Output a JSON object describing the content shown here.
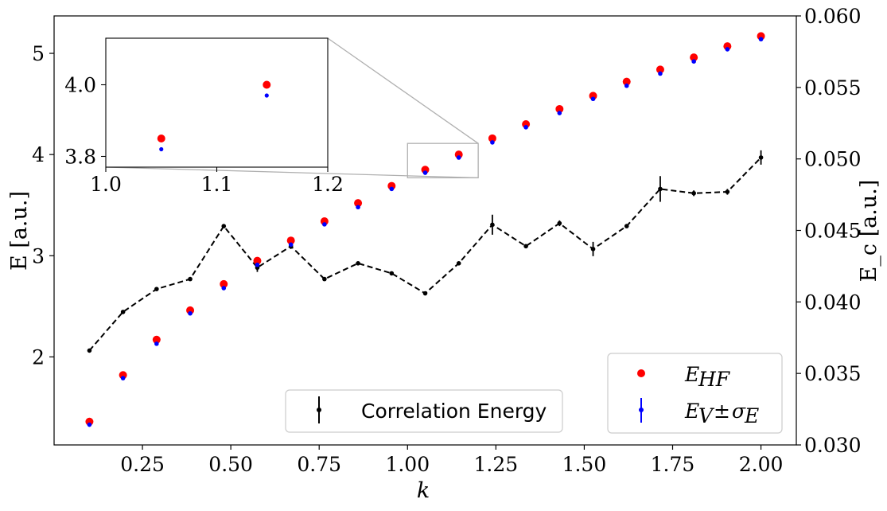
{
  "chart_data": {
    "type": "scatter",
    "xlabel": "k",
    "ylabel_left": "E [a.u.]",
    "ylabel_right": "E_c [a.u.]",
    "xlim": [
      0.0,
      2.1
    ],
    "ylim_left": [
      1.13,
      5.37
    ],
    "ylim_right": [
      0.03,
      0.06
    ],
    "xticks": [
      "0.25",
      "0.50",
      "0.75",
      "1.00",
      "1.25",
      "1.50",
      "1.75",
      "2.00"
    ],
    "yticks_left": [
      "2",
      "3",
      "4",
      "5"
    ],
    "yticks_right": [
      "0.030",
      "0.035",
      "0.040",
      "0.045",
      "0.050",
      "0.055",
      "0.060"
    ],
    "grid": false,
    "x": [
      0.1,
      0.195,
      0.29,
      0.385,
      0.48,
      0.575,
      0.67,
      0.765,
      0.86,
      0.955,
      1.05,
      1.145,
      1.24,
      1.335,
      1.43,
      1.525,
      1.62,
      1.715,
      1.81,
      1.905,
      2.0
    ],
    "series": [
      {
        "name": "E_HF",
        "axis": "left",
        "marker": "large-dot",
        "color": "#ff0000",
        "values": [
          1.36,
          1.82,
          2.17,
          2.46,
          2.72,
          2.95,
          3.15,
          3.34,
          3.52,
          3.69,
          3.85,
          4.0,
          4.16,
          4.3,
          4.45,
          4.58,
          4.72,
          4.84,
          4.96,
          5.07,
          5.17
        ]
      },
      {
        "name": "E_V ± σ_E",
        "axis": "left",
        "marker": "small-dot-errorbar",
        "color": "#0000ff",
        "values": [
          1.33,
          1.79,
          2.13,
          2.43,
          2.68,
          2.91,
          3.11,
          3.31,
          3.48,
          3.66,
          3.82,
          3.97,
          4.12,
          4.27,
          4.41,
          4.55,
          4.68,
          4.8,
          4.92,
          5.04,
          5.14
        ]
      },
      {
        "name": "Correlation Energy",
        "axis": "right",
        "marker": "small-dot-errorbar-dashed-line",
        "color": "#000000",
        "values": [
          0.0366,
          0.0393,
          0.0409,
          0.0416,
          0.0453,
          0.0424,
          0.0439,
          0.0416,
          0.0427,
          0.042,
          0.0406,
          0.0427,
          0.0454,
          0.0439,
          0.0455,
          0.0437,
          0.0453,
          0.0479,
          0.0476,
          0.0477,
          0.0501
        ],
        "errors": [
          0.0001,
          0.0001,
          0.0001,
          0.0001,
          0.0001,
          0.0003,
          0.0002,
          0.0001,
          0.0001,
          0.0001,
          0.0001,
          0.0001,
          0.0007,
          0.0001,
          0.0002,
          0.0005,
          0.0001,
          0.0009,
          0.0002,
          0.0002,
          0.0005
        ]
      }
    ],
    "legends": [
      {
        "placement": "bottom-center",
        "entries": [
          "Correlation Energy"
        ]
      },
      {
        "placement": "bottom-right",
        "entries": [
          "E_HF",
          "E_V ± σ_E"
        ]
      }
    ],
    "inset": {
      "xlim": [
        1.0,
        1.2
      ],
      "ylim": [
        3.77,
        4.13
      ],
      "xticks": [
        "1.0",
        "1.1",
        "1.2"
      ],
      "yticks": [
        "3.8",
        "4.0"
      ],
      "indicator_box": {
        "x": [
          1.0,
          1.2
        ],
        "y": [
          3.77,
          4.11
        ]
      }
    }
  }
}
